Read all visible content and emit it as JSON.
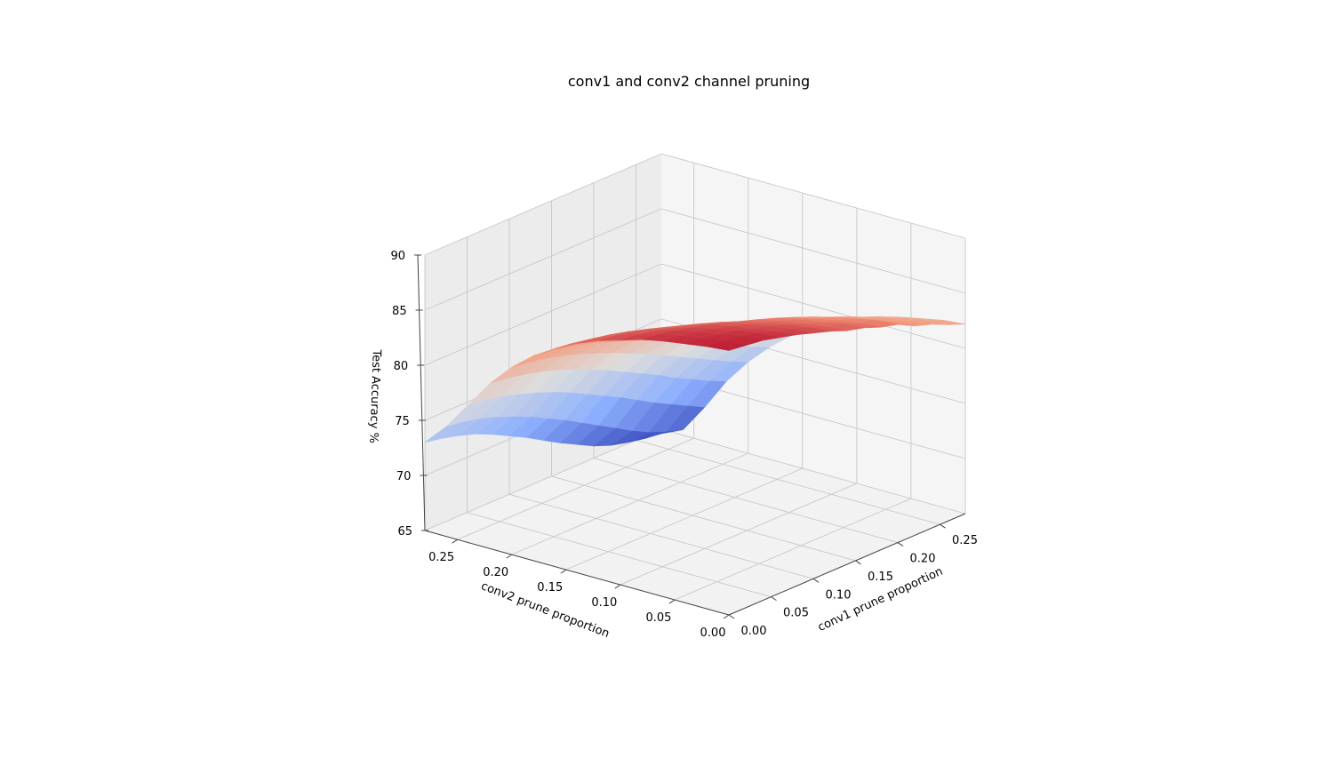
{
  "chart_data": {
    "type": "surface3d",
    "title": "conv1 and conv2 channel pruning",
    "xlabel": "conv1 prune proportion",
    "ylabel": "conv2 prune proportion",
    "zlabel": "Test Accuracy %",
    "xlim": [
      0,
      0.28
    ],
    "ylim": [
      0,
      0.28
    ],
    "zlim": [
      65,
      90
    ],
    "x_ticks": [
      "0.00",
      "0.05",
      "0.10",
      "0.15",
      "0.20",
      "0.25"
    ],
    "y_ticks": [
      "0.00",
      "0.05",
      "0.10",
      "0.15",
      "0.20",
      "0.25"
    ],
    "z_ticks": [
      "65",
      "70",
      "75",
      "80",
      "85",
      "90"
    ],
    "colormap": "coolwarm",
    "grid": true,
    "x": [
      0.0,
      0.02,
      0.04,
      0.06,
      0.08,
      0.1,
      0.12,
      0.14,
      0.16,
      0.18,
      0.2,
      0.22,
      0.24,
      0.26,
      0.28
    ],
    "y": [
      0.0,
      0.02,
      0.04,
      0.06,
      0.08,
      0.1,
      0.12,
      0.14,
      0.16,
      0.18,
      0.2,
      0.22,
      0.24,
      0.26,
      0.28
    ],
    "z": [
      [
        89.0,
        88.8,
        88.6,
        88.2,
        87.8,
        87.3,
        86.8,
        86.2,
        85.8,
        85.2,
        84.8,
        84.0,
        83.5,
        82.8,
        82.2
      ],
      [
        88.8,
        88.6,
        88.4,
        88.0,
        87.5,
        87.1,
        86.6,
        86.0,
        85.6,
        85.0,
        84.6,
        83.8,
        83.2,
        82.6,
        82.0
      ],
      [
        88.5,
        88.3,
        88.0,
        87.7,
        87.2,
        86.8,
        86.3,
        85.7,
        85.2,
        84.7,
        84.2,
        83.5,
        82.9,
        82.3,
        81.6
      ],
      [
        88.2,
        88.0,
        87.7,
        87.3,
        86.9,
        86.4,
        85.9,
        85.4,
        84.9,
        84.3,
        83.8,
        83.1,
        82.5,
        81.8,
        81.2
      ],
      [
        87.8,
        87.6,
        87.3,
        86.9,
        86.5,
        86.0,
        85.5,
        85.0,
        84.5,
        83.9,
        83.3,
        82.6,
        82.0,
        81.3,
        80.7
      ],
      [
        87.2,
        87.0,
        86.7,
        86.3,
        85.9,
        85.4,
        84.9,
        84.3,
        83.8,
        83.2,
        82.6,
        81.9,
        81.3,
        80.6,
        80.0
      ],
      [
        86.6,
        86.4,
        86.1,
        85.7,
        85.2,
        84.7,
        84.2,
        83.6,
        83.0,
        82.4,
        81.8,
        81.1,
        80.4,
        79.7,
        79.1
      ],
      [
        85.8,
        85.6,
        85.3,
        84.9,
        84.4,
        83.9,
        83.3,
        82.7,
        82.1,
        81.5,
        80.8,
        80.1,
        79.4,
        78.7,
        78.0
      ],
      [
        84.8,
        84.6,
        84.3,
        83.9,
        83.4,
        82.9,
        82.3,
        81.7,
        81.0,
        80.4,
        79.7,
        78.9,
        78.2,
        77.5,
        76.8
      ],
      [
        83.6,
        83.4,
        83.1,
        82.7,
        82.2,
        81.6,
        81.0,
        80.4,
        79.7,
        79.0,
        78.2,
        77.4,
        76.7,
        75.9,
        75.2
      ],
      [
        82.0,
        81.8,
        81.5,
        81.1,
        80.6,
        80.0,
        79.4,
        78.7,
        78.0,
        77.2,
        76.4,
        75.6,
        74.8,
        74.0,
        73.3
      ],
      [
        80.0,
        79.8,
        79.5,
        79.1,
        78.6,
        78.0,
        77.3,
        76.6,
        75.8,
        75.0,
        74.2,
        73.3,
        72.5,
        71.7,
        71.0
      ],
      [
        77.5,
        77.3,
        77.0,
        76.5,
        76.0,
        75.4,
        74.7,
        73.9,
        73.1,
        72.3,
        71.4,
        70.5,
        69.7,
        68.9,
        68.1
      ],
      [
        75.0,
        74.8,
        74.4,
        73.9,
        73.3,
        72.6,
        71.8,
        71.0,
        70.1,
        69.2,
        68.3,
        67.4,
        66.6,
        66.0,
        65.5
      ],
      [
        73.0,
        72.7,
        72.3,
        71.8,
        71.1,
        70.3,
        69.5,
        68.6,
        67.7,
        66.9,
        66.1,
        65.5,
        65.1,
        64.8,
        64.6
      ]
    ]
  }
}
